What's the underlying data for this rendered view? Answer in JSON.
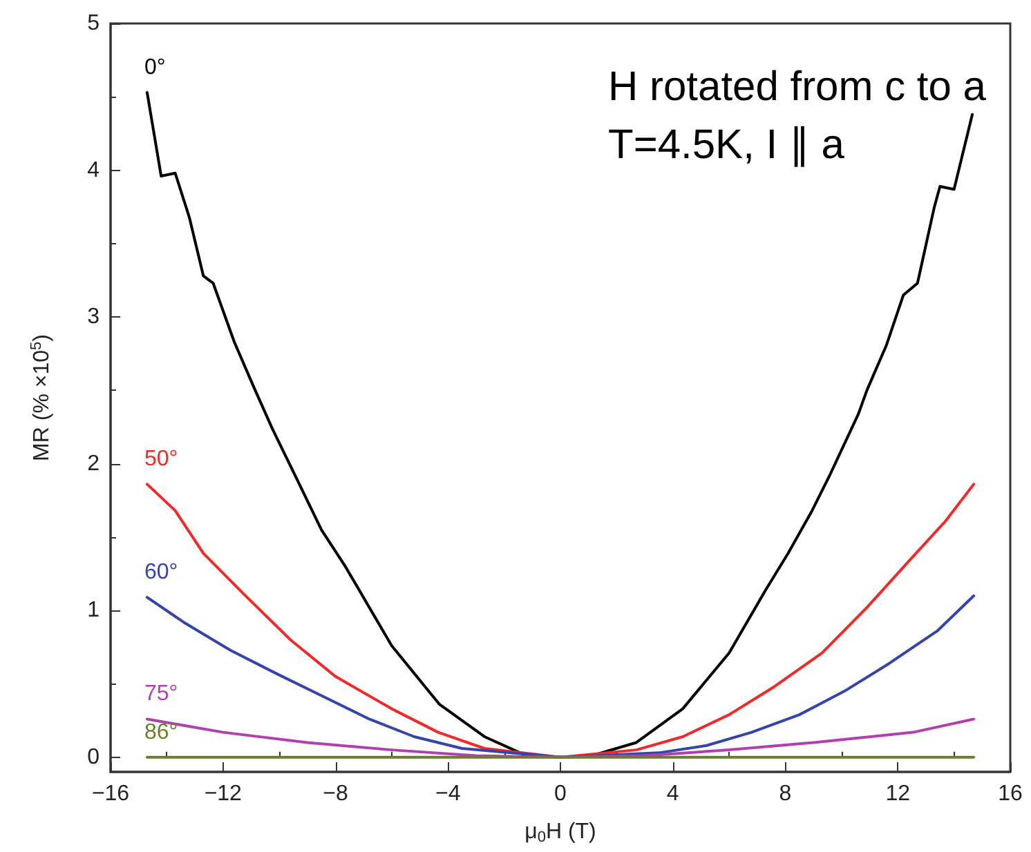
{
  "chart_data": {
    "type": "line",
    "xlabel": "μ$_{0}$H (T)",
    "ylabel": "MR (% ×10$^{5}$)",
    "annotations": [
      "H rotated from c to a",
      "T=4.5K, I ∥ a"
    ],
    "xlim": [
      -16,
      16
    ],
    "ylim": [
      -0.1,
      5
    ],
    "xticks": [
      -16,
      {
        "value": -14,
        "label": null
      },
      -12,
      {
        "value": -10,
        "label": null
      },
      -8,
      {
        "value": -6,
        "label": null
      },
      -4,
      {
        "value": -2,
        "label": null
      },
      0,
      {
        "value": 2,
        "label": null
      },
      4,
      {
        "value": 6,
        "label": null
      },
      8,
      {
        "value": 10,
        "label": null
      },
      12,
      {
        "value": 14,
        "label": null
      },
      16
    ],
    "yticks": [
      0,
      {
        "value": 0.5,
        "label": null
      },
      1,
      {
        "value": 1.5,
        "label": null
      },
      2,
      {
        "value": 2.5,
        "label": null
      },
      3,
      {
        "value": 3.5,
        "label": null
      },
      4,
      {
        "value": 4.5,
        "label": null
      },
      5
    ],
    "grid": false,
    "legend": false,
    "marker": "none",
    "line_style": "solid",
    "series": [
      {
        "name": "0°",
        "color": "#000000",
        "x": [
          -14.7,
          -14.2,
          -13.7,
          -13.2,
          -12.7,
          -12.35,
          -11.6,
          -10.9,
          -10.25,
          -9.46,
          -8.5,
          -7.65,
          -6.0,
          -4.3,
          -2.7,
          -1.2,
          0,
          1.1,
          2.7,
          4.35,
          6.0,
          7.3,
          8.1,
          8.95,
          9.6,
          10.6,
          10.9,
          11.6,
          12.2,
          12.7,
          13.3,
          13.5,
          14.0,
          14.65
        ],
        "values": [
          4.53,
          3.96,
          3.98,
          3.68,
          3.28,
          3.23,
          2.83,
          2.52,
          2.24,
          1.93,
          1.55,
          1.3,
          0.76,
          0.36,
          0.14,
          0.01,
          0,
          0.01,
          0.1,
          0.33,
          0.71,
          1.14,
          1.39,
          1.68,
          1.93,
          2.34,
          2.5,
          2.81,
          3.15,
          3.23,
          3.75,
          3.89,
          3.87,
          4.38
        ]
      },
      {
        "name": "50°",
        "color": "#ee2a2a",
        "x": [
          -14.7,
          -13.7,
          -12.7,
          -11.25,
          -9.6,
          -8.0,
          -6.0,
          -4.35,
          -2.7,
          0,
          2.7,
          4.35,
          6.0,
          7.6,
          9.3,
          10.9,
          12.55,
          13.7,
          14.7
        ],
        "values": [
          1.86,
          1.68,
          1.39,
          1.11,
          0.8,
          0.55,
          0.33,
          0.17,
          0.06,
          0,
          0.05,
          0.14,
          0.29,
          0.48,
          0.71,
          1.02,
          1.37,
          1.61,
          1.86
        ]
      },
      {
        "name": "60°",
        "color": "#3344aa",
        "x": [
          -14.7,
          -13.4,
          -11.75,
          -10.1,
          -8.5,
          -6.8,
          -5.2,
          -3.5,
          0,
          3.5,
          5.2,
          6.8,
          8.5,
          10.1,
          11.7,
          13.4,
          14.7
        ],
        "values": [
          1.09,
          0.92,
          0.73,
          0.57,
          0.42,
          0.26,
          0.14,
          0.06,
          0,
          0.03,
          0.08,
          0.17,
          0.29,
          0.45,
          0.64,
          0.86,
          1.1
        ]
      },
      {
        "name": "75°",
        "color": "#b040b0",
        "x": [
          -14.7,
          -12,
          -9,
          -6,
          -3,
          0,
          3,
          6,
          9,
          12.55,
          14.7
        ],
        "values": [
          0.26,
          0.17,
          0.1,
          0.05,
          0.01,
          0,
          0.01,
          0.05,
          0.1,
          0.17,
          0.26
        ]
      },
      {
        "name": "86°",
        "color": "#6b7f2a",
        "x": [
          -14.7,
          0,
          14.7
        ],
        "values": [
          0,
          0,
          0
        ]
      }
    ]
  }
}
